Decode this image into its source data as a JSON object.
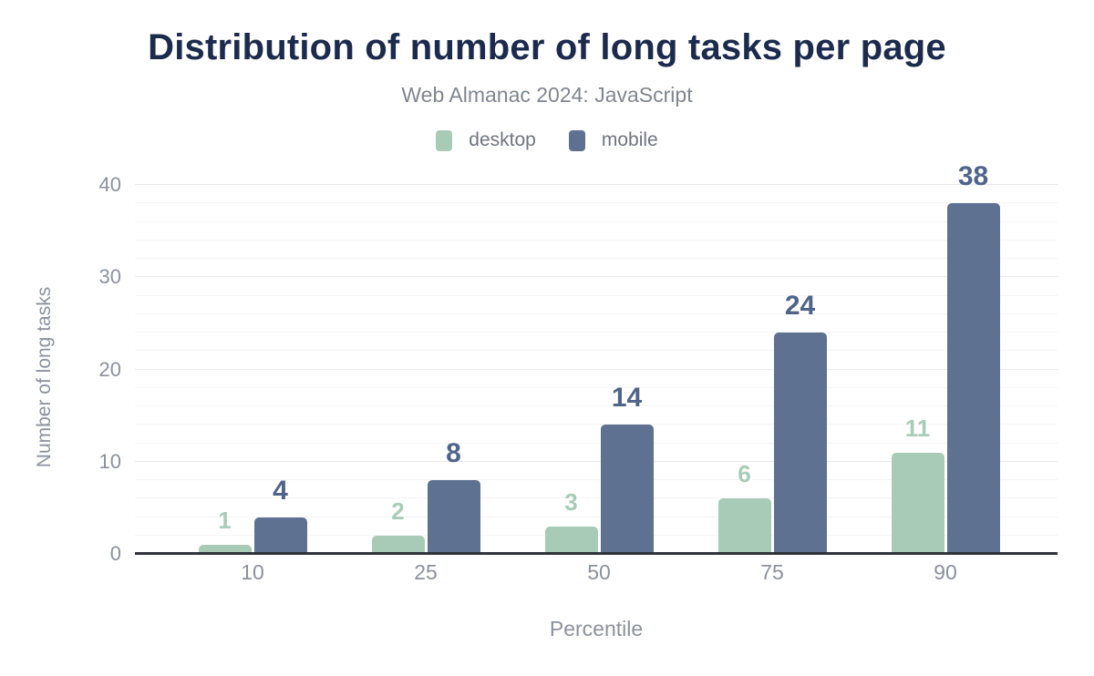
{
  "header": {
    "title": "Distribution of number of long tasks per page",
    "subtitle": "Web Almanac 2024: JavaScript"
  },
  "chart_data": {
    "type": "bar",
    "title": "Distribution of number of long tasks per page",
    "subtitle": "Web Almanac 2024: JavaScript",
    "categories": [
      "10",
      "25",
      "50",
      "75",
      "90"
    ],
    "series": [
      {
        "name": "desktop",
        "color": "#a8cbb7",
        "label_color": "#a9ccb8",
        "values": [
          1,
          2,
          3,
          6,
          11
        ]
      },
      {
        "name": "mobile",
        "color": "#5e7190",
        "label_color": "#50648a",
        "values": [
          4,
          8,
          14,
          24,
          38
        ]
      }
    ],
    "xlabel": "Percentile",
    "ylabel": "Number of long tasks",
    "ylim": [
      0,
      40
    ],
    "y_ticks": [
      0,
      10,
      20,
      30,
      40
    ],
    "grid": {
      "minor_step": 2,
      "major_step": 10,
      "minor_color": "#f5f5f8",
      "major_color": "#e9eaef"
    },
    "legend_position": "top",
    "axis_line_color": "#303338"
  },
  "colors": {
    "title": "#1c2b4d",
    "subtitle": "#80868f",
    "axis_text": "#8b919c",
    "legend_text": "#6e7580",
    "background": "#ffffff"
  }
}
